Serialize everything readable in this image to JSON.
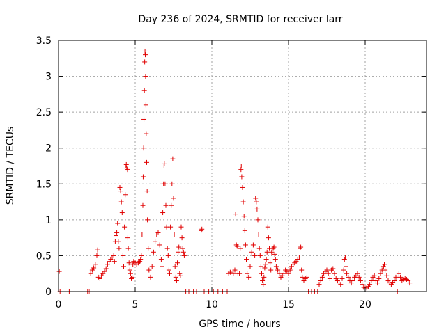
{
  "chart_data": {
    "type": "scatter",
    "title": "Day 236 of 2024, SRMTID for receiver larr",
    "xlabel": "GPS time / hours",
    "ylabel": "SRMTID / TECUs",
    "xlim": [
      0,
      24
    ],
    "ylim": [
      0,
      3.5
    ],
    "xticks": [
      0,
      5,
      10,
      15,
      20
    ],
    "xtick_labels": [
      "0",
      "5",
      "10",
      "15",
      "20"
    ],
    "yticks": [
      0,
      0.5,
      1,
      1.5,
      2,
      2.5,
      3,
      3.5
    ],
    "ytick_labels": [
      "0",
      "0.5",
      "1",
      "1.5",
      "2",
      "2.5",
      "3",
      "3.5"
    ],
    "grid": true,
    "marker": "+",
    "series": [
      {
        "name": "SRMTID",
        "color": "#e00000",
        "points": [
          [
            0.05,
            0.28
          ],
          [
            0.1,
            0.0
          ],
          [
            0.7,
            0.0
          ],
          [
            1.9,
            0.0
          ],
          [
            2.0,
            0.0
          ],
          [
            2.1,
            0.25
          ],
          [
            2.2,
            0.3
          ],
          [
            2.3,
            0.33
          ],
          [
            2.4,
            0.38
          ],
          [
            2.5,
            0.5
          ],
          [
            2.55,
            0.58
          ],
          [
            2.6,
            0.2
          ],
          [
            2.7,
            0.18
          ],
          [
            2.8,
            0.22
          ],
          [
            2.9,
            0.25
          ],
          [
            3.0,
            0.28
          ],
          [
            3.1,
            0.32
          ],
          [
            3.2,
            0.38
          ],
          [
            3.3,
            0.42
          ],
          [
            3.4,
            0.45
          ],
          [
            3.5,
            0.48
          ],
          [
            3.6,
            0.5
          ],
          [
            3.65,
            0.42
          ],
          [
            3.7,
            0.7
          ],
          [
            3.75,
            0.78
          ],
          [
            3.8,
            0.82
          ],
          [
            3.85,
            0.95
          ],
          [
            3.9,
            0.7
          ],
          [
            3.95,
            0.6
          ],
          [
            4.0,
            1.45
          ],
          [
            4.05,
            1.4
          ],
          [
            4.1,
            1.25
          ],
          [
            4.15,
            1.1
          ],
          [
            4.2,
            0.5
          ],
          [
            4.25,
            0.35
          ],
          [
            4.3,
            0.9
          ],
          [
            4.35,
            1.35
          ],
          [
            4.4,
            1.75
          ],
          [
            4.42,
            1.77
          ],
          [
            4.45,
            1.72
          ],
          [
            4.5,
            1.7
          ],
          [
            4.52,
            0.75
          ],
          [
            4.55,
            0.6
          ],
          [
            4.6,
            0.4
          ],
          [
            4.65,
            0.3
          ],
          [
            4.7,
            0.25
          ],
          [
            4.75,
            0.18
          ],
          [
            4.8,
            0.2
          ],
          [
            4.85,
            0.38
          ],
          [
            4.9,
            0.42
          ],
          [
            5.0,
            0.4
          ],
          [
            5.1,
            0.38
          ],
          [
            5.2,
            0.4
          ],
          [
            5.3,
            0.42
          ],
          [
            5.35,
            0.45
          ],
          [
            5.4,
            0.5
          ],
          [
            5.45,
            0.8
          ],
          [
            5.5,
            1.2
          ],
          [
            5.52,
            1.6
          ],
          [
            5.55,
            2.0
          ],
          [
            5.57,
            2.4
          ],
          [
            5.6,
            2.8
          ],
          [
            5.62,
            3.2
          ],
          [
            5.64,
            3.35
          ],
          [
            5.66,
            3.3
          ],
          [
            5.68,
            3.0
          ],
          [
            5.7,
            2.6
          ],
          [
            5.72,
            2.2
          ],
          [
            5.75,
            1.8
          ],
          [
            5.78,
            1.4
          ],
          [
            5.8,
            1.0
          ],
          [
            5.85,
            0.6
          ],
          [
            5.9,
            0.3
          ],
          [
            6.0,
            0.2
          ],
          [
            6.1,
            0.35
          ],
          [
            6.2,
            0.55
          ],
          [
            6.3,
            0.7
          ],
          [
            6.4,
            0.8
          ],
          [
            6.5,
            0.82
          ],
          [
            6.6,
            0.65
          ],
          [
            6.7,
            0.45
          ],
          [
            6.75,
            0.35
          ],
          [
            6.8,
            1.1
          ],
          [
            6.85,
            1.5
          ],
          [
            6.88,
            1.75
          ],
          [
            6.9,
            1.78
          ],
          [
            6.95,
            1.5
          ],
          [
            7.0,
            1.2
          ],
          [
            7.05,
            0.9
          ],
          [
            7.1,
            0.6
          ],
          [
            7.15,
            0.5
          ],
          [
            7.2,
            0.3
          ],
          [
            7.25,
            0.25
          ],
          [
            7.3,
            0.9
          ],
          [
            7.35,
            1.2
          ],
          [
            7.4,
            1.5
          ],
          [
            7.45,
            1.85
          ],
          [
            7.5,
            1.3
          ],
          [
            7.55,
            0.8
          ],
          [
            7.6,
            0.35
          ],
          [
            7.65,
            0.2
          ],
          [
            7.7,
            0.15
          ],
          [
            7.75,
            0.4
          ],
          [
            7.8,
            0.55
          ],
          [
            7.85,
            0.62
          ],
          [
            7.9,
            0.25
          ],
          [
            7.95,
            0.22
          ],
          [
            8.0,
            0.9
          ],
          [
            8.05,
            0.75
          ],
          [
            8.1,
            0.6
          ],
          [
            8.15,
            0.55
          ],
          [
            8.2,
            0.5
          ],
          [
            8.3,
            0.0
          ],
          [
            8.5,
            0.0
          ],
          [
            8.8,
            0.0
          ],
          [
            9.0,
            0.0
          ],
          [
            9.3,
            0.85
          ],
          [
            9.35,
            0.87
          ],
          [
            9.5,
            0.0
          ],
          [
            9.8,
            0.0
          ],
          [
            10.1,
            0.0
          ],
          [
            10.4,
            0.0
          ],
          [
            10.7,
            0.0
          ],
          [
            11.0,
            0.0
          ],
          [
            11.1,
            0.25
          ],
          [
            11.2,
            0.27
          ],
          [
            11.4,
            0.25
          ],
          [
            11.5,
            0.3
          ],
          [
            11.55,
            1.08
          ],
          [
            11.6,
            0.65
          ],
          [
            11.65,
            0.63
          ],
          [
            11.7,
            0.25
          ],
          [
            11.8,
            0.25
          ],
          [
            11.85,
            0.6
          ],
          [
            11.9,
            1.7
          ],
          [
            11.92,
            1.75
          ],
          [
            11.95,
            1.6
          ],
          [
            12.0,
            1.45
          ],
          [
            12.05,
            1.25
          ],
          [
            12.1,
            1.05
          ],
          [
            12.15,
            0.85
          ],
          [
            12.2,
            0.65
          ],
          [
            12.25,
            0.45
          ],
          [
            12.3,
            0.25
          ],
          [
            12.4,
            0.2
          ],
          [
            12.5,
            0.35
          ],
          [
            12.6,
            0.55
          ],
          [
            12.7,
            0.65
          ],
          [
            12.8,
            0.5
          ],
          [
            12.85,
            1.3
          ],
          [
            12.9,
            1.25
          ],
          [
            12.95,
            1.15
          ],
          [
            13.0,
            1.0
          ],
          [
            13.05,
            0.8
          ],
          [
            13.1,
            0.6
          ],
          [
            13.15,
            0.5
          ],
          [
            13.2,
            0.35
          ],
          [
            13.25,
            0.25
          ],
          [
            13.3,
            0.15
          ],
          [
            13.35,
            0.1
          ],
          [
            13.4,
            0.2
          ],
          [
            13.45,
            0.33
          ],
          [
            13.5,
            0.38
          ],
          [
            13.55,
            0.45
          ],
          [
            13.6,
            0.55
          ],
          [
            13.65,
            0.9
          ],
          [
            13.7,
            0.75
          ],
          [
            13.75,
            0.6
          ],
          [
            13.8,
            0.4
          ],
          [
            13.85,
            0.3
          ],
          [
            13.9,
            0.55
          ],
          [
            14.0,
            0.6
          ],
          [
            14.05,
            0.62
          ],
          [
            14.1,
            0.52
          ],
          [
            14.15,
            0.45
          ],
          [
            14.2,
            0.35
          ],
          [
            14.3,
            0.3
          ],
          [
            14.4,
            0.25
          ],
          [
            14.5,
            0.2
          ],
          [
            14.6,
            0.22
          ],
          [
            14.7,
            0.25
          ],
          [
            14.8,
            0.3
          ],
          [
            14.9,
            0.28
          ],
          [
            15.0,
            0.25
          ],
          [
            15.1,
            0.3
          ],
          [
            15.2,
            0.35
          ],
          [
            15.3,
            0.38
          ],
          [
            15.4,
            0.4
          ],
          [
            15.5,
            0.42
          ],
          [
            15.6,
            0.45
          ],
          [
            15.7,
            0.48
          ],
          [
            15.75,
            0.6
          ],
          [
            15.8,
            0.62
          ],
          [
            15.85,
            0.3
          ],
          [
            15.9,
            0.2
          ],
          [
            16.0,
            0.15
          ],
          [
            16.1,
            0.18
          ],
          [
            16.2,
            0.2
          ],
          [
            16.3,
            0.0
          ],
          [
            16.5,
            0.0
          ],
          [
            16.7,
            0.0
          ],
          [
            16.9,
            0.0
          ],
          [
            17.0,
            0.1
          ],
          [
            17.1,
            0.15
          ],
          [
            17.2,
            0.2
          ],
          [
            17.3,
            0.25
          ],
          [
            17.4,
            0.28
          ],
          [
            17.5,
            0.3
          ],
          [
            17.6,
            0.25
          ],
          [
            17.7,
            0.18
          ],
          [
            17.8,
            0.3
          ],
          [
            17.9,
            0.32
          ],
          [
            18.0,
            0.25
          ],
          [
            18.1,
            0.18
          ],
          [
            18.2,
            0.15
          ],
          [
            18.3,
            0.12
          ],
          [
            18.4,
            0.1
          ],
          [
            18.5,
            0.18
          ],
          [
            18.6,
            0.3
          ],
          [
            18.65,
            0.45
          ],
          [
            18.7,
            0.48
          ],
          [
            18.75,
            0.35
          ],
          [
            18.8,
            0.25
          ],
          [
            18.9,
            0.2
          ],
          [
            19.0,
            0.15
          ],
          [
            19.1,
            0.12
          ],
          [
            19.2,
            0.15
          ],
          [
            19.3,
            0.2
          ],
          [
            19.4,
            0.22
          ],
          [
            19.5,
            0.25
          ],
          [
            19.6,
            0.2
          ],
          [
            19.7,
            0.15
          ],
          [
            19.8,
            0.1
          ],
          [
            19.9,
            0.06
          ],
          [
            20.0,
            0.05
          ],
          [
            20.1,
            0.05
          ],
          [
            20.2,
            0.07
          ],
          [
            20.3,
            0.1
          ],
          [
            20.4,
            0.15
          ],
          [
            20.5,
            0.2
          ],
          [
            20.6,
            0.22
          ],
          [
            20.7,
            0.15
          ],
          [
            20.8,
            0.12
          ],
          [
            20.9,
            0.18
          ],
          [
            21.0,
            0.25
          ],
          [
            21.1,
            0.3
          ],
          [
            21.2,
            0.35
          ],
          [
            21.25,
            0.38
          ],
          [
            21.3,
            0.3
          ],
          [
            21.4,
            0.22
          ],
          [
            21.5,
            0.15
          ],
          [
            21.6,
            0.12
          ],
          [
            21.7,
            0.1
          ],
          [
            21.8,
            0.13
          ],
          [
            21.9,
            0.15
          ],
          [
            22.0,
            0.2
          ],
          [
            22.1,
            0.0
          ],
          [
            22.2,
            0.25
          ],
          [
            22.3,
            0.2
          ],
          [
            22.4,
            0.15
          ],
          [
            22.5,
            0.17
          ],
          [
            22.6,
            0.18
          ],
          [
            22.7,
            0.17
          ],
          [
            22.8,
            0.15
          ],
          [
            22.9,
            0.12
          ]
        ]
      }
    ]
  }
}
